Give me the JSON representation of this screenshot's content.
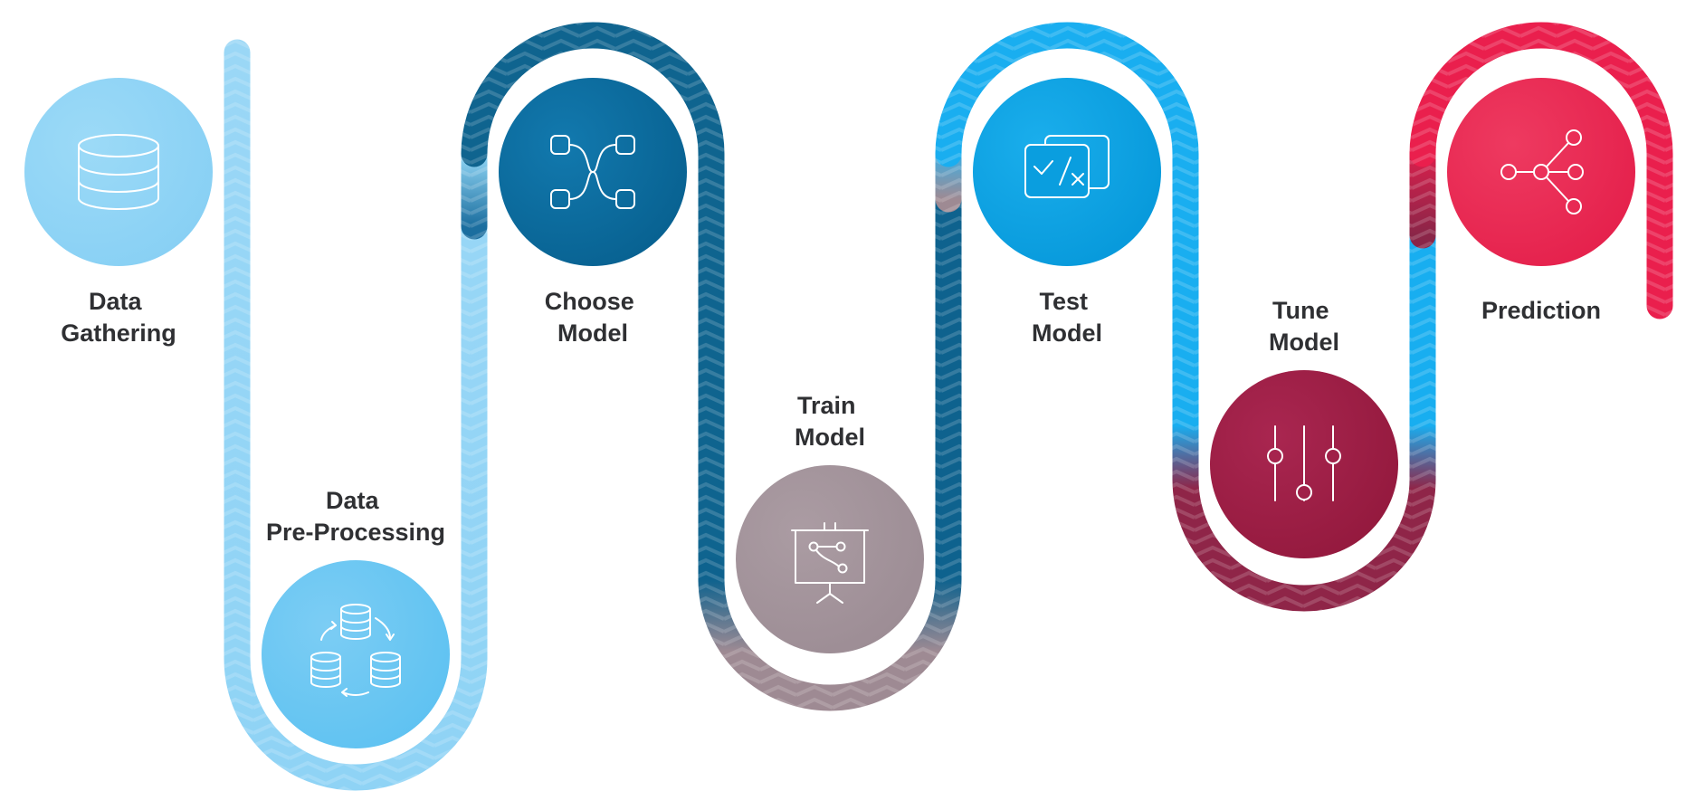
{
  "steps": [
    {
      "id": "data-gathering",
      "label_lines": [
        "Data",
        "Gathering"
      ],
      "icon": "database-icon",
      "color": "#8fd3f5"
    },
    {
      "id": "data-pre-processing",
      "label_lines": [
        "Data",
        "Pre-Processing"
      ],
      "icon": "database-cycle-icon",
      "color": "#67c5f2"
    },
    {
      "id": "choose-model",
      "label_lines": [
        "Choose",
        "Model"
      ],
      "icon": "node-connections-icon",
      "color": "#0b6b9e"
    },
    {
      "id": "train-model",
      "label_lines": [
        "Train",
        "Model"
      ],
      "icon": "presentation-board-icon",
      "color": "#a3939b"
    },
    {
      "id": "test-model",
      "label_lines": [
        "Test",
        "Model"
      ],
      "icon": "check-cross-cards-icon",
      "color": "#089fe0"
    },
    {
      "id": "tune-model",
      "label_lines": [
        "Tune",
        "Model"
      ],
      "icon": "sliders-icon",
      "color": "#9b1e43"
    },
    {
      "id": "prediction",
      "label_lines": [
        "Prediction"
      ],
      "icon": "network-share-icon",
      "color": "#e8234f"
    }
  ],
  "colors": {
    "light_blue": "#8fd3f5",
    "sky_blue": "#6cc8f2",
    "dark_blue": "#0e628e",
    "mauve": "#9e8a93",
    "bright_blue": "#18aef0",
    "crimson": "#a02049",
    "red": "#ea1f4d",
    "text": "#2f3033"
  }
}
